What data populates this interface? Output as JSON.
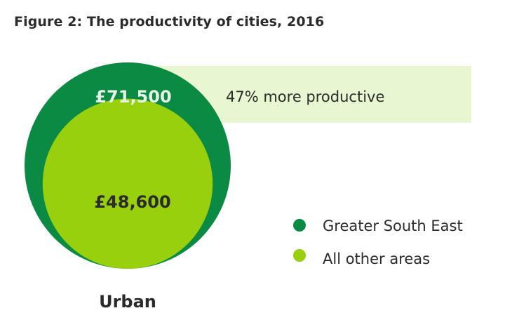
{
  "chart_data": {
    "type": "bubble",
    "title": "Figure 2: The productivity of cities, 2016",
    "category": "Urban",
    "series": [
      {
        "name": "Greater South East",
        "value": 71500,
        "label": "£71,500"
      },
      {
        "name": "All other areas",
        "value": 48600,
        "label": "£48,600"
      }
    ],
    "annotation": "47% more productive",
    "legend_position": "right"
  },
  "colors": {
    "greater_south_east": "#0b8a43",
    "all_other_areas": "#98d00d",
    "annotation_band": "#e8f6d2",
    "text_dark": "#2b2b2b",
    "text_on_dark": "#e6f1e8"
  }
}
